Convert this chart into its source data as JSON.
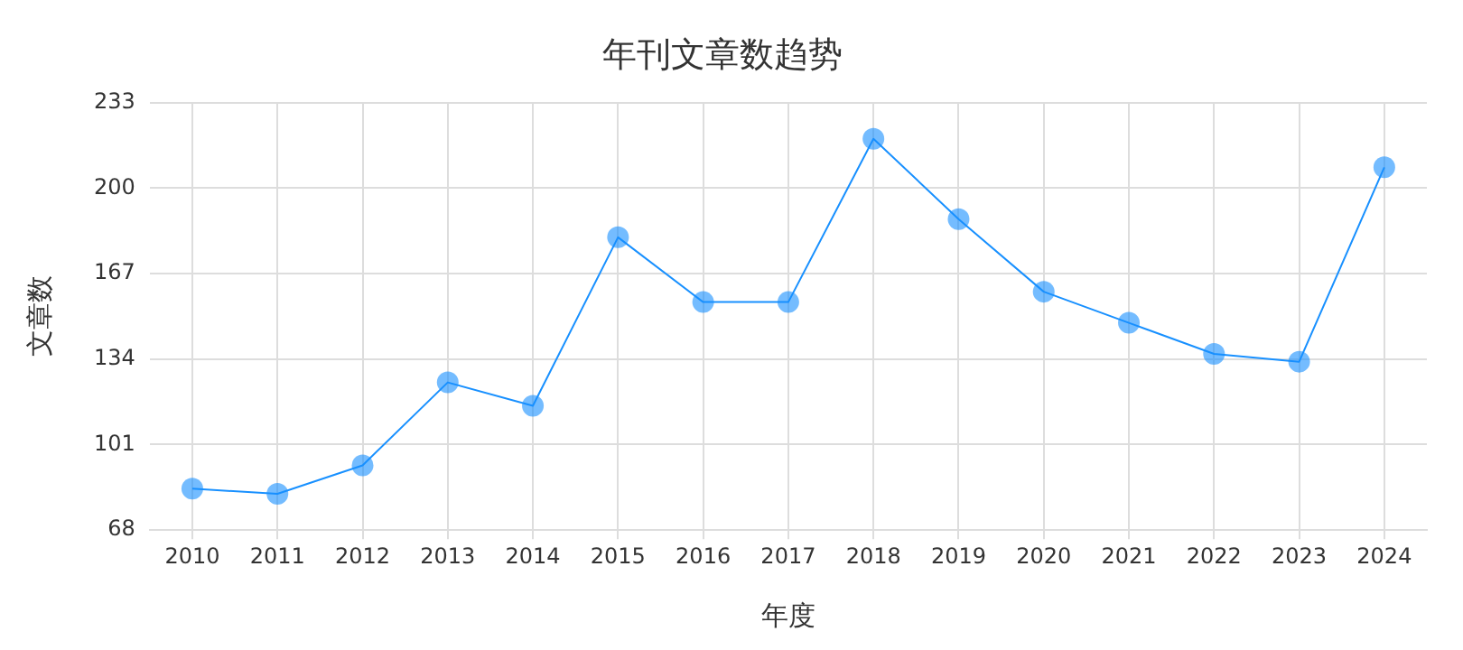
{
  "chart_data": {
    "type": "line",
    "title": "年刊文章数趋势",
    "xlabel": "年度",
    "ylabel": "文章数",
    "categories": [
      "2010",
      "2011",
      "2012",
      "2013",
      "2014",
      "2015",
      "2016",
      "2017",
      "2018",
      "2019",
      "2020",
      "2021",
      "2022",
      "2023",
      "2024"
    ],
    "series": [
      {
        "color": "#1890ff",
        "values": [
          84,
          82,
          93,
          125,
          116,
          181,
          156,
          156,
          219,
          188,
          160,
          148,
          136,
          133,
          208
        ]
      }
    ],
    "ylim": [
      68,
      233
    ],
    "yticks": [
      68,
      101,
      134,
      167,
      200,
      233
    ],
    "grid": true,
    "legend": false,
    "marker": "circle",
    "line_style": "solid"
  }
}
